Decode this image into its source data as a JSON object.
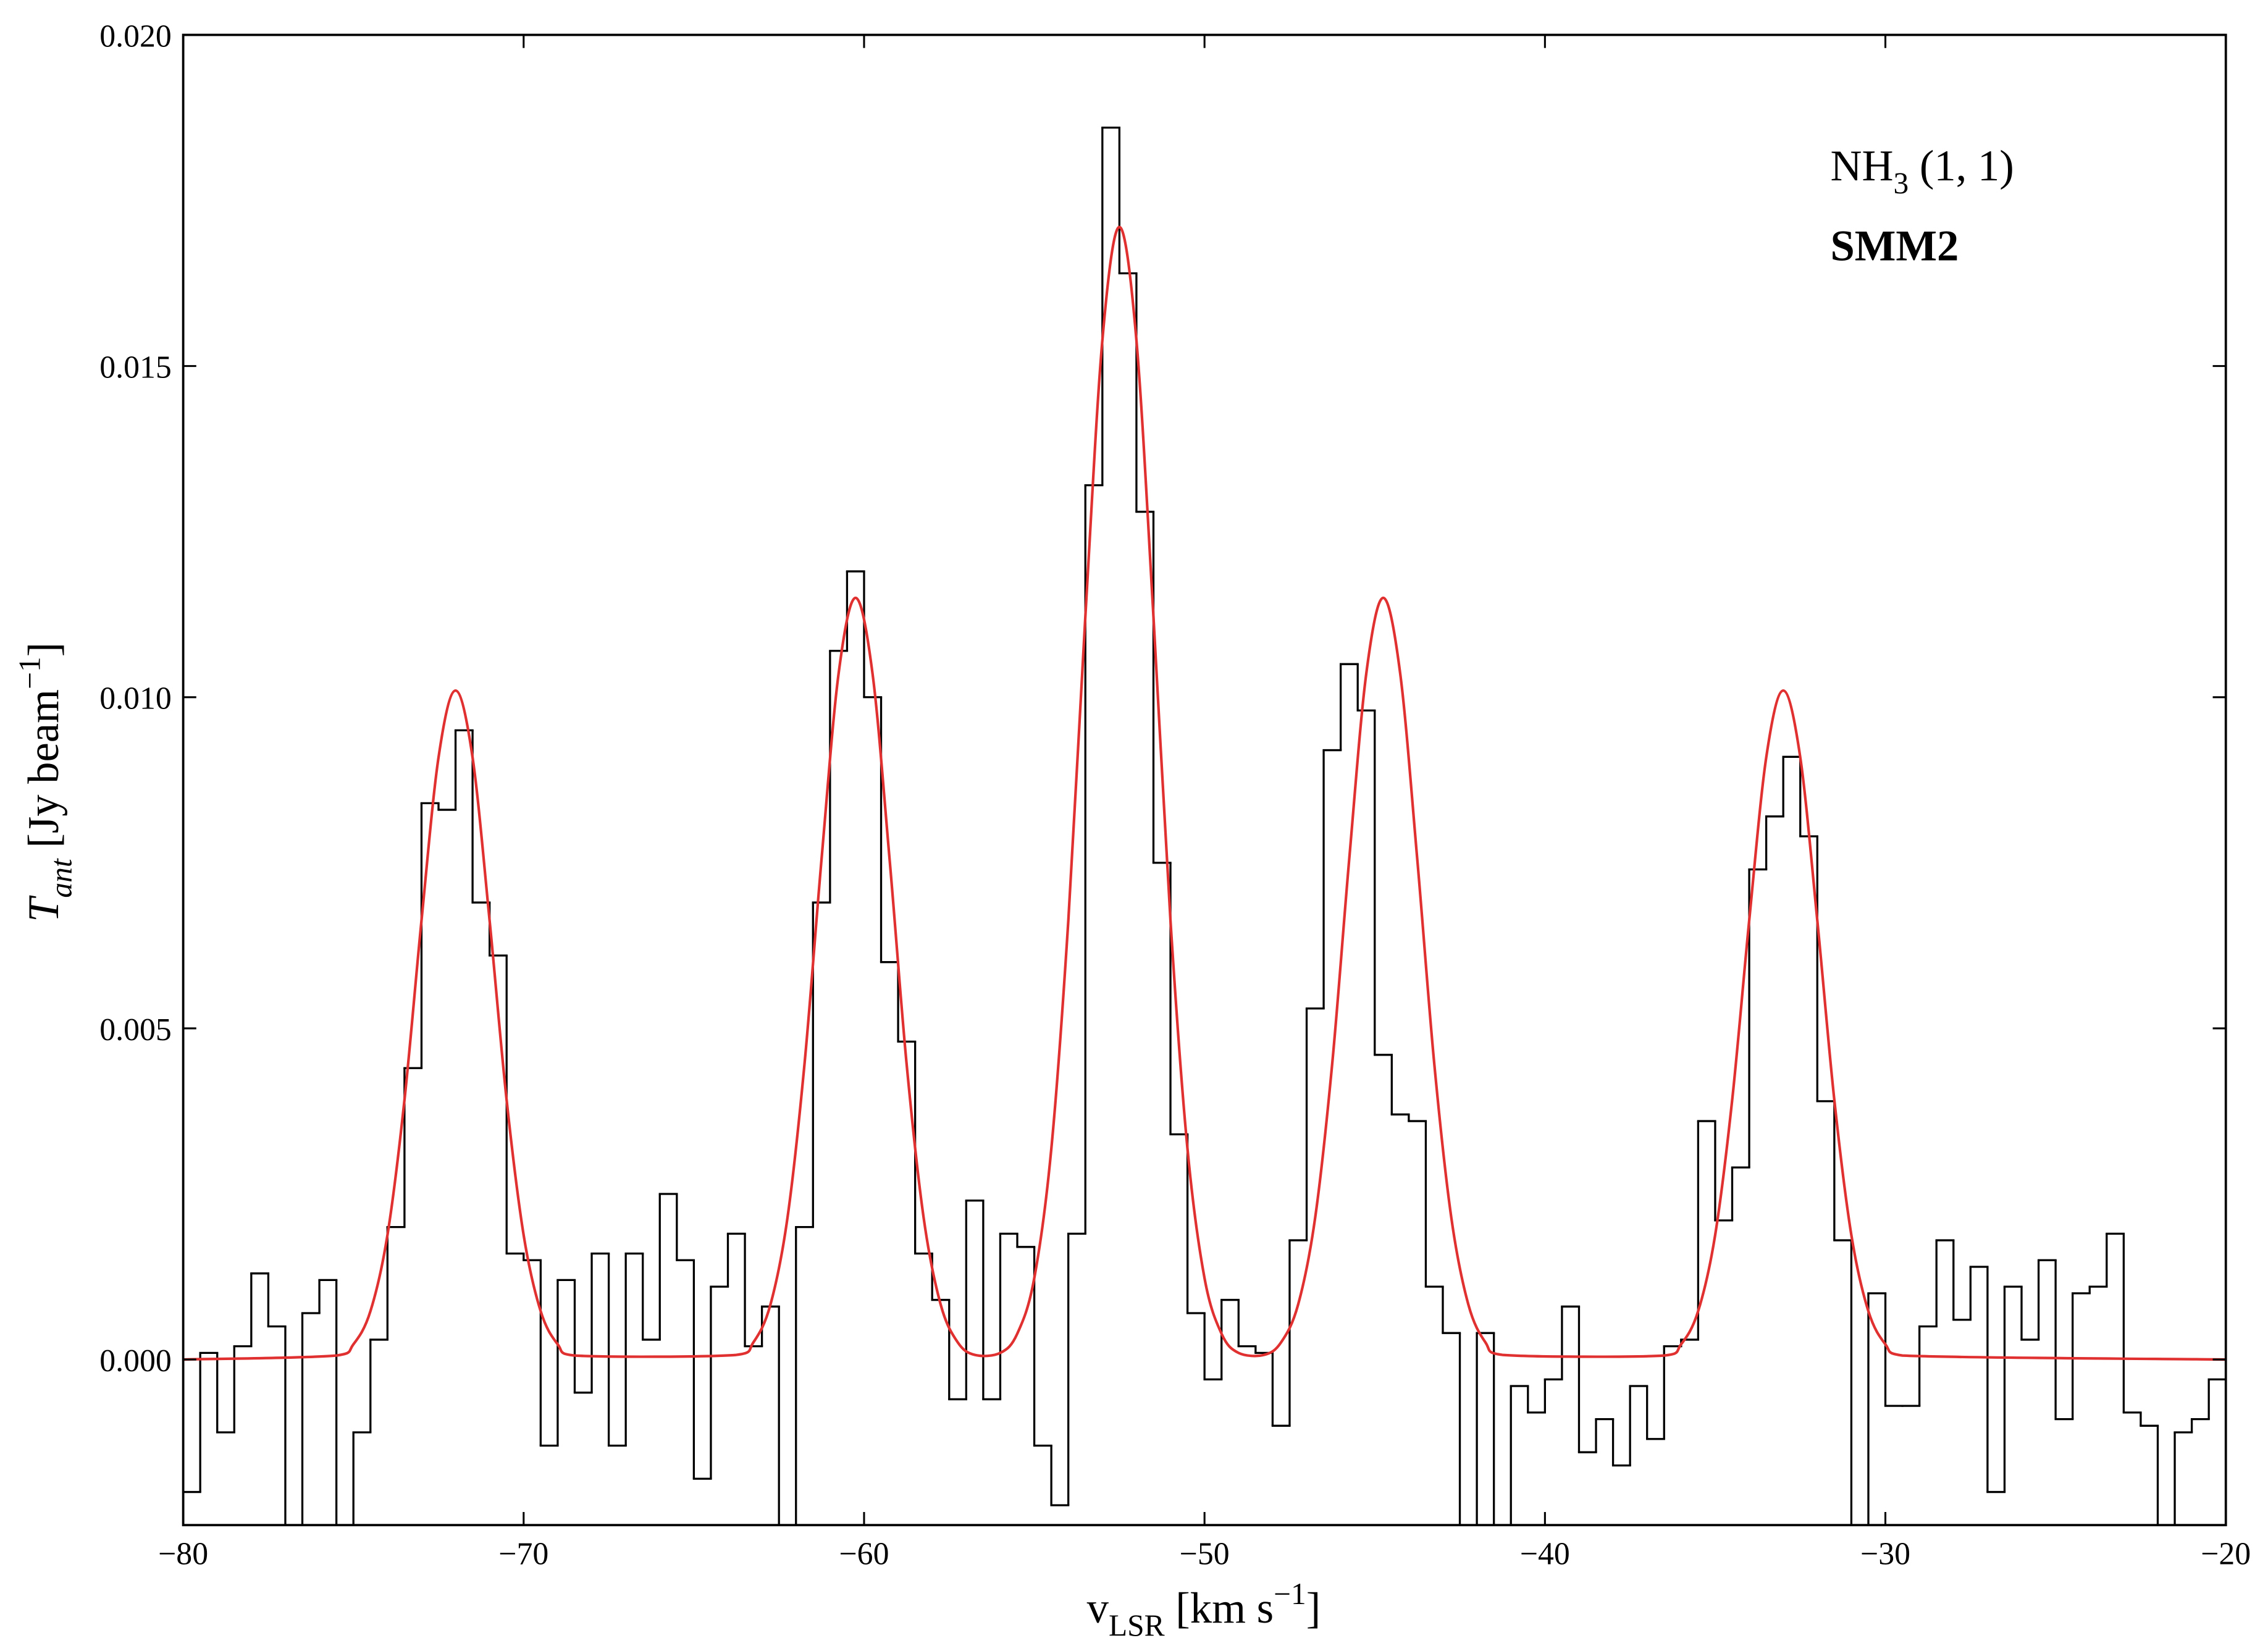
{
  "chart_data": {
    "type": "line",
    "xlabel": [
      {
        "text": "v"
      },
      {
        "text": "LSR",
        "shift": "sub"
      },
      {
        "text": " [km s"
      },
      {
        "text": "−1",
        "shift": "sup"
      },
      {
        "text": "]"
      }
    ],
    "ylabel": [
      {
        "text": "T",
        "style": "italic"
      },
      {
        "text": "ant",
        "shift": "sub",
        "style": "italic"
      },
      {
        "text": " [Jy beam"
      },
      {
        "text": "−1",
        "shift": "sup"
      },
      {
        "text": "]"
      }
    ],
    "annotations": [
      {
        "parts": [
          {
            "text": "NH"
          },
          {
            "text": "3",
            "shift": "sub"
          },
          {
            "text": " (1, 1)"
          }
        ]
      },
      {
        "parts": [
          {
            "text": "SMM2",
            "weight": "bold"
          }
        ]
      }
    ],
    "xlim": [
      -80,
      -20
    ],
    "ylim": [
      -0.0025,
      0.02
    ],
    "xticks": [
      {
        "value": -80,
        "label": "−80"
      },
      {
        "value": -70,
        "label": "−70"
      },
      {
        "value": -60,
        "label": "−60"
      },
      {
        "value": -50,
        "label": "−50"
      },
      {
        "value": -40,
        "label": "−40"
      },
      {
        "value": -30,
        "label": "−30"
      },
      {
        "value": -20,
        "label": "−20"
      }
    ],
    "yticks": [
      {
        "value": 0,
        "label": "0.000"
      },
      {
        "value": 0.005,
        "label": "0.005"
      },
      {
        "value": 0.01,
        "label": "0.010"
      },
      {
        "value": 0.015,
        "label": "0.015"
      },
      {
        "value": 0.02,
        "label": "0.020"
      }
    ],
    "grid": false,
    "series": [
      {
        "color": "#000000",
        "drawstyle": "steps-mid",
        "x": [
          -79.75,
          -79.25,
          -78.75,
          -78.25,
          -77.75,
          -77.25,
          -76.75,
          -76.25,
          -75.75,
          -75.25,
          -74.75,
          -74.25,
          -73.75,
          -73.25,
          -72.75,
          -72.25,
          -71.75,
          -71.25,
          -70.75,
          -70.25,
          -69.75,
          -69.25,
          -68.75,
          -68.25,
          -67.75,
          -67.25,
          -66.75,
          -66.25,
          -65.75,
          -65.25,
          -64.75,
          -64.25,
          -63.75,
          -63.25,
          -62.75,
          -62.25,
          -61.75,
          -61.25,
          -60.75,
          -60.25,
          -59.75,
          -59.25,
          -58.75,
          -58.25,
          -57.75,
          -57.25,
          -56.75,
          -56.25,
          -55.75,
          -55.25,
          -54.75,
          -54.25,
          -53.75,
          -53.25,
          -52.75,
          -52.25,
          -51.75,
          -51.25,
          -50.75,
          -50.25,
          -49.75,
          -49.25,
          -48.75,
          -48.25,
          -47.75,
          -47.25,
          -46.75,
          -46.25,
          -45.75,
          -45.25,
          -44.75,
          -44.25,
          -43.75,
          -43.25,
          -42.75,
          -42.25,
          -41.75,
          -41.25,
          -40.75,
          -40.25,
          -39.75,
          -39.25,
          -38.75,
          -38.25,
          -37.75,
          -37.25,
          -36.75,
          -36.25,
          -35.75,
          -35.25,
          -34.75,
          -34.25,
          -33.75,
          -33.25,
          -32.75,
          -32.25,
          -31.75,
          -31.25,
          -30.75,
          -30.25,
          -29.75,
          -29.25,
          -28.75,
          -28.25,
          -27.75,
          -27.25,
          -26.75,
          -26.25,
          -25.75,
          -25.25,
          -24.75,
          -24.25,
          -23.75,
          -23.25,
          -22.75,
          -22.25,
          -21.75,
          -21.25,
          -20.75,
          -20.25
        ],
        "values": [
          -0.002,
          0.0001,
          -0.0011,
          0.0002,
          0.0013,
          0.0005,
          -0.003,
          0.0007,
          0.0012,
          -0.003,
          -0.0011,
          0.0003,
          0.002,
          0.0044,
          0.0084,
          0.0083,
          0.0095,
          0.0069,
          0.0061,
          0.0016,
          0.0015,
          -0.0013,
          0.0012,
          -0.0005,
          0.0016,
          -0.0013,
          0.0016,
          0.0003,
          0.0025,
          0.0015,
          -0.0018,
          0.0011,
          0.0019,
          0.0002,
          0.0008,
          -0.004,
          0.002,
          0.0069,
          0.0107,
          0.0119,
          0.01,
          0.006,
          0.0048,
          0.0016,
          0.0009,
          -0.0006,
          0.0024,
          -0.0006,
          0.0019,
          0.0017,
          -0.0013,
          -0.0022,
          0.0019,
          0.0132,
          0.0186,
          0.0164,
          0.0128,
          0.0075,
          0.0034,
          0.0007,
          -0.0003,
          0.0009,
          0.0002,
          0.0001,
          -0.001,
          0.0018,
          0.0053,
          0.0092,
          0.0105,
          0.0098,
          0.0046,
          0.0037,
          0.0036,
          0.0011,
          0.0004,
          -0.003,
          0.0004,
          -0.0035,
          -0.0004,
          -0.0008,
          -0.0003,
          0.0008,
          -0.0014,
          -0.0009,
          -0.0016,
          -0.0004,
          -0.0012,
          0.0002,
          0.0003,
          0.0036,
          0.0021,
          0.0029,
          0.0074,
          0.0082,
          0.0091,
          0.0079,
          0.0039,
          0.0018,
          -0.0035,
          0.001,
          -0.0007,
          -0.0007,
          0.0005,
          0.0018,
          0.0006,
          0.0014,
          -0.002,
          0.0011,
          0.0003,
          0.0015,
          -0.0009,
          0.001,
          0.0011,
          0.0019,
          -0.0008,
          -0.001,
          -0.0025,
          -0.0011,
          -0.0009,
          -0.0003
        ]
      },
      {
        "color": "#e03030",
        "drawstyle": "smooth",
        "x": [
          -80,
          -75.5,
          -75,
          -74.5,
          -74,
          -73.5,
          -73,
          -72.5,
          -72,
          -71.5,
          -71,
          -70.5,
          -70,
          -69.5,
          -69,
          -68.5,
          -63.75,
          -63.25,
          -62.75,
          -62.25,
          -61.75,
          -61.25,
          -60.75,
          -60.25,
          -59.75,
          -59.25,
          -58.75,
          -58.25,
          -57.75,
          -57.25,
          -56.75,
          -56,
          -55.5,
          -55,
          -54.5,
          -54,
          -53.5,
          -53,
          -52.5,
          -52,
          -51.5,
          -51,
          -50.5,
          -50,
          -49.5,
          -49,
          -48.25,
          -47.75,
          -47.25,
          -46.75,
          -46.25,
          -45.75,
          -45.25,
          -44.75,
          -44.25,
          -43.75,
          -43.25,
          -42.75,
          -42.25,
          -41.75,
          -41.25,
          -36.5,
          -36,
          -35.5,
          -35,
          -34.5,
          -34,
          -33.5,
          -33,
          -32.5,
          -32,
          -31.5,
          -31,
          -30.5,
          -30,
          -29.5,
          -20
        ],
        "values": [
          0,
          6e-05,
          0.00023,
          0.00073,
          0.00188,
          0.00392,
          0.00663,
          0.00909,
          0.0101,
          0.00909,
          0.00663,
          0.00392,
          0.00188,
          0.00073,
          0.00023,
          6e-05,
          7e-05,
          0.00026,
          0.00083,
          0.00214,
          0.00446,
          0.00755,
          0.01035,
          0.0115,
          0.01035,
          0.00755,
          0.00446,
          0.00214,
          0.00083,
          0.00026,
          7e-05,
          0.0001,
          0.00039,
          0.00123,
          0.00318,
          0.00663,
          0.01122,
          0.01539,
          0.0171,
          0.01539,
          0.01122,
          0.00663,
          0.00318,
          0.00123,
          0.00039,
          0.0001,
          7e-05,
          0.00026,
          0.00083,
          0.00214,
          0.00446,
          0.00755,
          0.01035,
          0.0115,
          0.01035,
          0.00755,
          0.00446,
          0.00214,
          0.00083,
          0.00026,
          7e-05,
          6e-05,
          0.00023,
          0.00073,
          0.00188,
          0.00392,
          0.00663,
          0.00909,
          0.0101,
          0.00909,
          0.00663,
          0.00392,
          0.00188,
          0.00073,
          0.00023,
          6e-05,
          0
        ]
      }
    ]
  }
}
